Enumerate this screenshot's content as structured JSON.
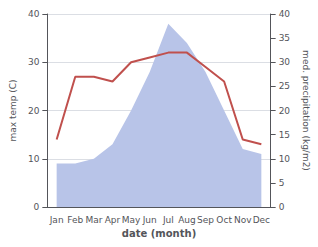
{
  "chart_data": {
    "type": "line",
    "categories": [
      "Jan",
      "Feb",
      "Mar",
      "Apr",
      "May",
      "Jun",
      "Jul",
      "Aug",
      "Sep",
      "Oct",
      "Nov",
      "Dec"
    ],
    "series": [
      {
        "type": "area",
        "color": "#b8c4e8",
        "axis": "y2",
        "values": [
          9,
          9,
          10,
          13,
          20,
          28,
          38,
          34,
          28,
          20,
          12,
          11
        ]
      },
      {
        "type": "line",
        "color": "#c0504d",
        "values": [
          14,
          27,
          27,
          26,
          30,
          31,
          32,
          32,
          29,
          26,
          14,
          13
        ]
      }
    ],
    "xlabel": "date (month)",
    "ylabel": "max temp (C)",
    "y2label": "med. precipitation (kg/m2)",
    "ylim": [
      0,
      40
    ],
    "yticks": [
      0,
      10,
      20,
      30,
      40
    ],
    "y2lim": [
      0,
      40
    ],
    "y2ticks": [
      0,
      5,
      10,
      15,
      20,
      25,
      30,
      35,
      40
    ],
    "grid": true
  }
}
